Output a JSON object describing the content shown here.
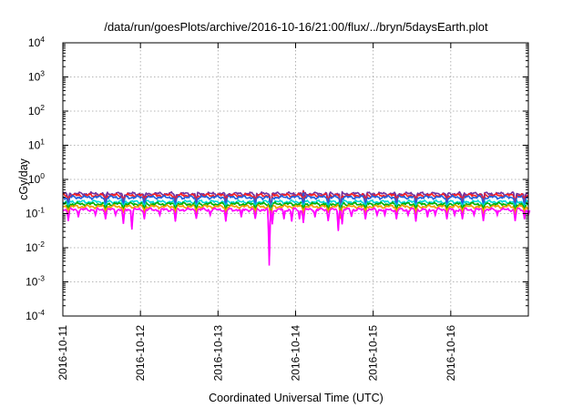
{
  "chart_data": {
    "type": "line",
    "title": "/data/run/goesPlots/archive/2016-10-16/21:00/flux/../bryn/5daysEarth.plot",
    "xlabel": "Coordinated Universal Time (UTC)",
    "ylabel": "cGy/day",
    "yscale": "log",
    "ylim": [
      0.0001,
      10000
    ],
    "xlim": [
      0,
      6
    ],
    "grid": true,
    "x_tick_labels": [
      "2016-10-11",
      "2016-10-12",
      "2016-10-13",
      "2016-10-14",
      "2016-10-15",
      "2016-10-16"
    ],
    "y_ticks": [
      {
        "value": 0.0001,
        "base": "10",
        "exp": "-4"
      },
      {
        "value": 0.001,
        "base": "10",
        "exp": "-3"
      },
      {
        "value": 0.01,
        "base": "10",
        "exp": "-2"
      },
      {
        "value": 0.1,
        "base": "10",
        "exp": "-1"
      },
      {
        "value": 1,
        "base": "10",
        "exp": "0"
      },
      {
        "value": 10,
        "base": "10",
        "exp": "1"
      },
      {
        "value": 100,
        "base": "10",
        "exp": "2"
      },
      {
        "value": 1000,
        "base": "10",
        "exp": "3"
      },
      {
        "value": 10000,
        "base": "10",
        "exp": "4"
      }
    ],
    "series": [
      {
        "color": "#7030a0",
        "level": 0.38,
        "dips": [
          [
            0.07,
            0.22
          ],
          [
            0.55,
            0.2
          ],
          [
            0.78,
            0.2
          ],
          [
            1.05,
            0.22
          ],
          [
            1.45,
            0.2
          ],
          [
            1.72,
            0.21
          ],
          [
            2.1,
            0.2
          ],
          [
            2.48,
            0.22
          ],
          [
            2.68,
            0.12
          ],
          [
            3.1,
            0.21
          ],
          [
            3.42,
            0.2
          ],
          [
            3.58,
            0.12
          ],
          [
            3.9,
            0.22
          ],
          [
            4.3,
            0.2
          ],
          [
            4.55,
            0.21
          ],
          [
            4.95,
            0.22
          ],
          [
            5.15,
            0.2
          ],
          [
            5.42,
            0.21
          ],
          [
            5.83,
            0.16
          ],
          [
            5.95,
            0.2
          ]
        ],
        "spikes": [
          [
            3.1,
            0.47
          ]
        ]
      },
      {
        "color": "#ff2020",
        "level": 0.34,
        "dips": [
          [
            0.07,
            0.2
          ],
          [
            0.55,
            0.19
          ],
          [
            0.78,
            0.19
          ],
          [
            1.05,
            0.2
          ],
          [
            1.45,
            0.19
          ],
          [
            1.72,
            0.2
          ],
          [
            2.1,
            0.19
          ],
          [
            2.48,
            0.2
          ],
          [
            2.68,
            0.11
          ],
          [
            3.1,
            0.2
          ],
          [
            3.42,
            0.19
          ],
          [
            3.58,
            0.11
          ],
          [
            3.9,
            0.2
          ],
          [
            4.3,
            0.19
          ],
          [
            4.55,
            0.2
          ],
          [
            4.95,
            0.2
          ],
          [
            5.15,
            0.19
          ],
          [
            5.42,
            0.2
          ],
          [
            5.83,
            0.15
          ],
          [
            5.95,
            0.19
          ]
        ],
        "spikes": [
          [
            3.1,
            0.45
          ]
        ]
      },
      {
        "color": "#2060e0",
        "level": 0.3,
        "dips": [
          [
            0.07,
            0.18
          ],
          [
            0.55,
            0.17
          ],
          [
            0.78,
            0.17
          ],
          [
            1.05,
            0.18
          ],
          [
            1.45,
            0.17
          ],
          [
            1.72,
            0.18
          ],
          [
            2.1,
            0.17
          ],
          [
            2.48,
            0.18
          ],
          [
            2.68,
            0.1
          ],
          [
            3.1,
            0.18
          ],
          [
            3.42,
            0.17
          ],
          [
            3.58,
            0.1
          ],
          [
            3.9,
            0.18
          ],
          [
            4.3,
            0.17
          ],
          [
            4.55,
            0.18
          ],
          [
            4.95,
            0.18
          ],
          [
            5.15,
            0.17
          ],
          [
            5.42,
            0.18
          ],
          [
            5.83,
            0.14
          ],
          [
            5.95,
            0.17
          ]
        ],
        "spikes": [
          [
            3.1,
            0.4
          ]
        ]
      },
      {
        "color": "#00d8d8",
        "level": 0.22,
        "dips": [
          [
            0.07,
            0.15
          ],
          [
            0.55,
            0.14
          ],
          [
            0.78,
            0.14
          ],
          [
            1.05,
            0.15
          ],
          [
            1.45,
            0.14
          ],
          [
            1.72,
            0.15
          ],
          [
            2.1,
            0.14
          ],
          [
            2.48,
            0.15
          ],
          [
            2.68,
            0.09
          ],
          [
            3.1,
            0.15
          ],
          [
            3.42,
            0.14
          ],
          [
            3.58,
            0.09
          ],
          [
            3.9,
            0.15
          ],
          [
            4.3,
            0.14
          ],
          [
            4.55,
            0.15
          ],
          [
            4.95,
            0.15
          ],
          [
            5.15,
            0.14
          ],
          [
            5.42,
            0.15
          ],
          [
            5.83,
            0.12
          ],
          [
            5.95,
            0.14
          ]
        ],
        "spikes": [
          [
            3.1,
            0.3
          ]
        ]
      },
      {
        "color": "#00b000",
        "level": 0.19,
        "dips": [
          [
            0.07,
            0.13
          ],
          [
            0.55,
            0.125
          ],
          [
            0.78,
            0.125
          ],
          [
            1.05,
            0.13
          ],
          [
            1.45,
            0.125
          ],
          [
            1.72,
            0.13
          ],
          [
            2.1,
            0.125
          ],
          [
            2.48,
            0.13
          ],
          [
            2.68,
            0.08
          ],
          [
            3.1,
            0.13
          ],
          [
            3.42,
            0.125
          ],
          [
            3.58,
            0.08
          ],
          [
            3.9,
            0.13
          ],
          [
            4.3,
            0.125
          ],
          [
            4.55,
            0.13
          ],
          [
            4.95,
            0.13
          ],
          [
            5.15,
            0.125
          ],
          [
            5.42,
            0.13
          ],
          [
            5.83,
            0.11
          ],
          [
            5.95,
            0.125
          ]
        ],
        "spikes": [
          [
            3.1,
            0.25
          ]
        ]
      },
      {
        "color": "#f0a000",
        "level": 0.16,
        "dips": [
          [
            0.07,
            0.11
          ],
          [
            0.55,
            0.105
          ],
          [
            0.78,
            0.105
          ],
          [
            1.05,
            0.11
          ],
          [
            1.45,
            0.105
          ],
          [
            1.72,
            0.11
          ],
          [
            2.1,
            0.105
          ],
          [
            2.48,
            0.11
          ],
          [
            2.68,
            0.07
          ],
          [
            3.1,
            0.11
          ],
          [
            3.42,
            0.105
          ],
          [
            3.58,
            0.07
          ],
          [
            3.9,
            0.11
          ],
          [
            4.3,
            0.105
          ],
          [
            4.55,
            0.11
          ],
          [
            4.95,
            0.11
          ],
          [
            5.15,
            0.105
          ],
          [
            5.42,
            0.11
          ],
          [
            5.83,
            0.095
          ],
          [
            5.95,
            0.105
          ]
        ],
        "spikes": [
          [
            3.1,
            0.21
          ]
        ]
      },
      {
        "color": "#ff00ff",
        "level": 0.13,
        "dips": [
          [
            0.07,
            0.06
          ],
          [
            0.2,
            0.08
          ],
          [
            0.42,
            0.09
          ],
          [
            0.55,
            0.07
          ],
          [
            0.68,
            0.09
          ],
          [
            0.78,
            0.05
          ],
          [
            0.89,
            0.034
          ],
          [
            1.05,
            0.07
          ],
          [
            1.25,
            0.09
          ],
          [
            1.45,
            0.06
          ],
          [
            1.72,
            0.07
          ],
          [
            1.9,
            0.09
          ],
          [
            2.1,
            0.06
          ],
          [
            2.3,
            0.08
          ],
          [
            2.48,
            0.07
          ],
          [
            2.66,
            0.003
          ],
          [
            2.7,
            0.05
          ],
          [
            2.85,
            0.07
          ],
          [
            2.95,
            0.06
          ],
          [
            3.05,
            0.07
          ],
          [
            3.1,
            0.055
          ],
          [
            3.25,
            0.08
          ],
          [
            3.42,
            0.06
          ],
          [
            3.55,
            0.032
          ],
          [
            3.6,
            0.05
          ],
          [
            3.72,
            0.08
          ],
          [
            3.9,
            0.07
          ],
          [
            4.05,
            0.09
          ],
          [
            4.15,
            0.09
          ],
          [
            4.3,
            0.07
          ],
          [
            4.45,
            0.09
          ],
          [
            4.55,
            0.06
          ],
          [
            4.7,
            0.08
          ],
          [
            4.8,
            0.09
          ],
          [
            4.95,
            0.07
          ],
          [
            5.05,
            0.09
          ],
          [
            5.15,
            0.07
          ],
          [
            5.3,
            0.09
          ],
          [
            5.42,
            0.06
          ],
          [
            5.6,
            0.09
          ],
          [
            5.83,
            0.06
          ],
          [
            5.95,
            0.07
          ],
          [
            6.0,
            0.09
          ]
        ],
        "spikes": []
      }
    ]
  }
}
